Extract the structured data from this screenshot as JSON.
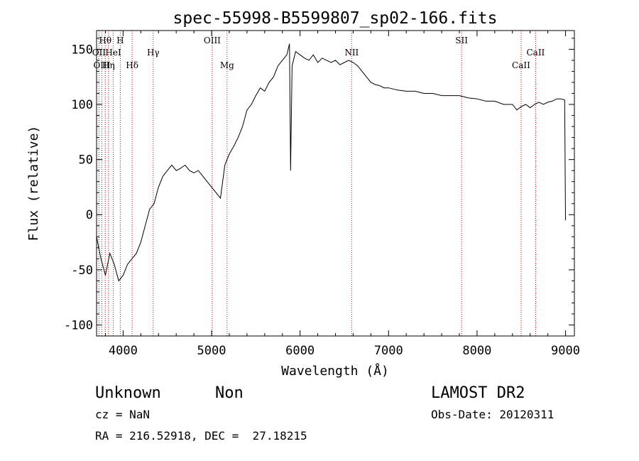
{
  "chart_data": {
    "type": "line",
    "title": "spec-55998-B5599807_sp02-166.fits",
    "xlabel": "Wavelength (Å)",
    "ylabel": "Flux (relative)",
    "xlim": [
      3700,
      9100
    ],
    "ylim": [
      -110,
      167
    ],
    "x_ticks": [
      4000,
      5000,
      6000,
      7000,
      8000,
      9000
    ],
    "y_ticks": [
      -100,
      -50,
      0,
      50,
      100,
      150
    ],
    "grid": false,
    "series_color": "#000000",
    "line_marker_color": "#cc0000",
    "line_markers": [
      {
        "label": "Hθ",
        "wavelength": 3798,
        "row": 0
      },
      {
        "label": "OII",
        "wavelength": 3727,
        "row": 1
      },
      {
        "label": "OIII",
        "wavelength": 3760,
        "row": 2
      },
      {
        "label": "H",
        "wavelength": 3968,
        "row": 0
      },
      {
        "label": "HeI",
        "wavelength": 3889,
        "row": 1
      },
      {
        "label": "Hη",
        "wavelength": 3835,
        "row": 2
      },
      {
        "label": "Hδ",
        "wavelength": 4102,
        "row": 2
      },
      {
        "label": "Hγ",
        "wavelength": 4340,
        "row": 1
      },
      {
        "label": "OIII",
        "wavelength": 5007,
        "row": 0
      },
      {
        "label": "Mg",
        "wavelength": 5175,
        "row": 2
      },
      {
        "label": "NII",
        "wavelength": 6583,
        "row": 1
      },
      {
        "label": "SII",
        "wavelength": 7825,
        "row": 0
      },
      {
        "label": "CaII",
        "wavelength": 8662,
        "row": 1
      },
      {
        "label": "CaII",
        "wavelength": 8498,
        "row": 2
      }
    ],
    "x": [
      3700,
      3750,
      3800,
      3850,
      3900,
      3950,
      4000,
      4050,
      4100,
      4150,
      4200,
      4250,
      4300,
      4350,
      4400,
      4450,
      4500,
      4550,
      4600,
      4650,
      4700,
      4750,
      4800,
      4850,
      4900,
      4950,
      5000,
      5050,
      5100,
      5150,
      5200,
      5250,
      5300,
      5350,
      5400,
      5450,
      5500,
      5550,
      5600,
      5650,
      5700,
      5750,
      5800,
      5850,
      5880,
      5893,
      5910,
      5950,
      6000,
      6050,
      6100,
      6150,
      6200,
      6250,
      6300,
      6350,
      6400,
      6450,
      6500,
      6550,
      6600,
      6650,
      6700,
      6750,
      6800,
      6850,
      6900,
      6950,
      7000,
      7100,
      7200,
      7300,
      7400,
      7500,
      7600,
      7700,
      7800,
      7900,
      8000,
      8100,
      8200,
      8300,
      8400,
      8450,
      8500,
      8550,
      8600,
      8650,
      8700,
      8750,
      8800,
      8850,
      8900,
      8950,
      8990,
      9000
    ],
    "y": [
      -20,
      -40,
      -55,
      -35,
      -45,
      -60,
      -55,
      -45,
      -40,
      -35,
      -25,
      -10,
      5,
      10,
      25,
      35,
      40,
      45,
      40,
      42,
      45,
      40,
      38,
      40,
      35,
      30,
      25,
      20,
      15,
      45,
      55,
      62,
      70,
      80,
      95,
      100,
      108,
      115,
      112,
      120,
      125,
      135,
      140,
      145,
      155,
      40,
      135,
      148,
      145,
      142,
      140,
      145,
      138,
      142,
      140,
      138,
      140,
      136,
      138,
      140,
      138,
      135,
      130,
      125,
      120,
      118,
      117,
      115,
      115,
      113,
      112,
      112,
      110,
      110,
      108,
      108,
      108,
      106,
      105,
      103,
      103,
      100,
      100,
      95,
      98,
      100,
      97,
      100,
      102,
      100,
      102,
      103,
      105,
      105,
      104,
      -5
    ]
  },
  "footer": {
    "class_label": "Unknown",
    "subclass_label": "Non",
    "cz_text": "cz = NaN",
    "coords_text": "RA = 216.52918, DEC =  27.18215",
    "survey_text": "LAMOST DR2",
    "obs_date_text": "Obs-Date: 20120311"
  }
}
